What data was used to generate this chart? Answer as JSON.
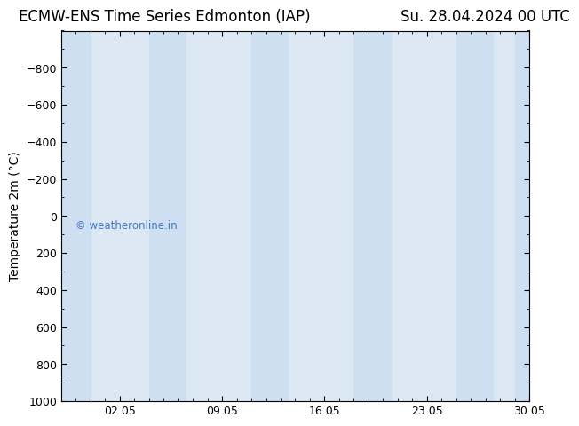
{
  "title_left": "ECMW-ENS Time Series Edmonton (IAP)",
  "title_right": "Su. 28.04.2024 00 UTC",
  "ylabel": "Temperature 2m (°C)",
  "ylim_top": -1000,
  "ylim_bottom": 1000,
  "yticks": [
    -800,
    -600,
    -400,
    -200,
    0,
    200,
    400,
    600,
    800,
    1000
  ],
  "xlim_left": 0,
  "xlim_right": 32,
  "xtick_positions": [
    4,
    11,
    18,
    25,
    32
  ],
  "xtick_labels": [
    "02.05",
    "09.05",
    "16.05",
    "23.05",
    "30.05"
  ],
  "background_color": "#ffffff",
  "plot_bg_color": "#dce9f5",
  "band_color": "#cddff0",
  "watermark": "© weatheronline.in",
  "watermark_color": "#4477cc",
  "title_fontsize": 12,
  "axis_label_fontsize": 10,
  "tick_fontsize": 9,
  "band_positions": [
    [
      0,
      2
    ],
    [
      6,
      8.5
    ],
    [
      13,
      15.5
    ],
    [
      20,
      22.5
    ],
    [
      27,
      29.5
    ],
    [
      31,
      32
    ]
  ]
}
